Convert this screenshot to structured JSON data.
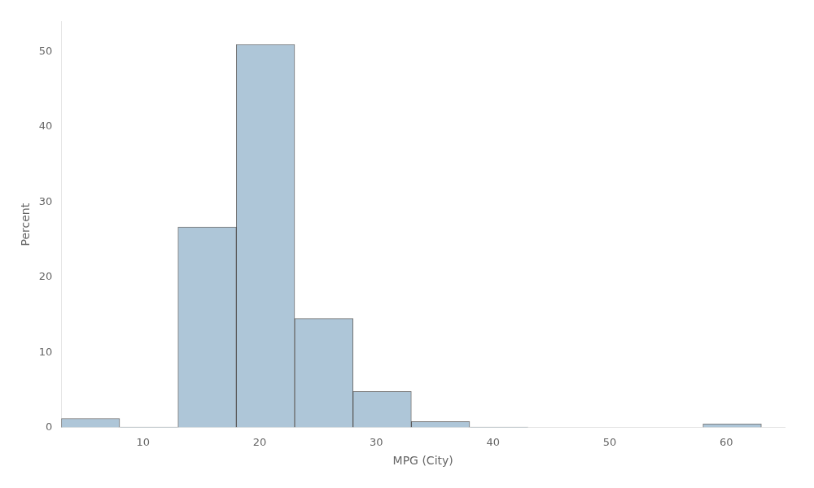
{
  "chart_data": {
    "type": "histogram",
    "bins": [
      3,
      8,
      13,
      18,
      23,
      28,
      33,
      38,
      43,
      48,
      53,
      58,
      63
    ],
    "values": [
      1.2,
      0.05,
      26.7,
      51.0,
      14.5,
      4.8,
      0.8,
      0.05,
      0.0,
      0.0,
      0.0,
      0.5
    ],
    "color": "#aec6d8",
    "xlabel": "MPG (City)",
    "ylabel": "Percent",
    "xlim": [
      3,
      65
    ],
    "ylim": [
      0,
      54
    ],
    "xticks": [
      10,
      20,
      30,
      40,
      50,
      60
    ],
    "yticks": [
      0,
      10,
      20,
      30,
      40,
      50
    ],
    "grid": false
  }
}
